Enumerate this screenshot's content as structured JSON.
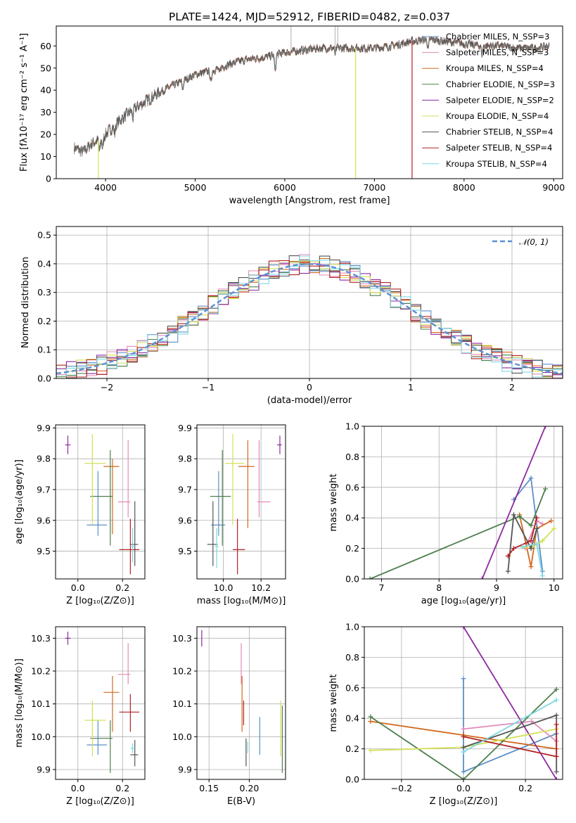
{
  "figure": {
    "title": "PLATE=1424, MJD=52912, FIBERID=0482, z=0.037"
  },
  "colors": {
    "Chabrier MILES": "#5c8fc9",
    "Salpeter MILES": "#e28ab9",
    "Kroupa MILES": "#d2691e",
    "Chabrier ELODIE": "#4e7f4e",
    "Salpeter ELODIE": "#8e2aa0",
    "Kroupa ELODIE": "#d4e157",
    "Chabrier STELIB": "#555555",
    "Salpeter STELIB": "#b22222",
    "Kroupa STELIB": "#7ed8e0",
    "normal_curve": "#5b8fd6"
  },
  "chart_data": [
    {
      "id": "spectrum",
      "type": "line",
      "title": "PLATE=1424, MJD=52912, FIBERID=0482, z=0.037",
      "xlabel": "wavelength [Angstrom, rest frame]",
      "ylabel": "Flux [fλ10⁻¹⁷ erg cm⁻² s⁻¹ A⁻¹]",
      "xlim": [
        3450,
        9100
      ],
      "ylim": [
        0,
        69
      ],
      "xticks": [
        4000,
        5000,
        6000,
        7000,
        8000,
        9000
      ],
      "yticks": [
        0,
        10,
        20,
        30,
        40,
        50,
        60
      ],
      "legend_position": "right",
      "legend": [
        "Chabrier MILES, N_SSP=3",
        "Salpeter MILES, N_SSP=3",
        "Kroupa MILES, N_SSP=4",
        "Chabrier ELODIE, N_SSP=3",
        "Salpeter ELODIE, N_SSP=2",
        "Kroupa ELODIE, N_SSP=4",
        "Chabrier STELIB, N_SSP=4",
        "Salpeter STELIB, N_SSP=4",
        "Kroupa STELIB, N_SSP=4"
      ],
      "continuum": {
        "x": [
          3650,
          3750,
          3850,
          3950,
          4050,
          4150,
          4300,
          4450,
          4600,
          4800,
          5000,
          5200,
          5400,
          5600,
          5800,
          6000,
          6200,
          6400,
          6600,
          6800,
          7000,
          7200,
          7400,
          7600,
          7800,
          8000,
          8200,
          8400,
          8600,
          8800,
          8950
        ],
        "y": [
          14,
          12,
          16,
          18,
          22,
          26,
          31,
          35,
          39,
          43,
          47,
          49,
          52,
          54,
          55,
          57,
          58,
          59,
          59,
          59,
          59,
          60,
          62,
          63,
          62,
          61,
          60,
          60,
          59,
          59,
          60
        ]
      },
      "dropouts": [
        {
          "series": "Kroupa ELODIE",
          "x": 6790
        },
        {
          "series": "Salpeter STELIB",
          "x": 7420
        },
        {
          "series": "Kroupa ELODIE",
          "x": 3920
        }
      ],
      "spikes": [
        6070,
        6560,
        6590
      ]
    },
    {
      "id": "residuals",
      "type": "line",
      "xlabel": "(data-model)/error",
      "ylabel": "Normed distribution",
      "xlim": [
        -2.5,
        2.5
      ],
      "ylim": [
        0,
        0.53
      ],
      "xticks": [
        -2,
        -1,
        0,
        1,
        2
      ],
      "yticks": [
        0.0,
        0.1,
        0.2,
        0.3,
        0.4,
        0.5
      ],
      "legend_position": "upper right",
      "legend": [
        "𝒩(0, 1)"
      ],
      "normal": {
        "mu": 0,
        "sigma": 1
      },
      "hist_bin_width": 0.1,
      "hist_series": [
        "Chabrier MILES",
        "Salpeter MILES",
        "Kroupa MILES",
        "Chabrier ELODIE",
        "Salpeter ELODIE",
        "Kroupa ELODIE",
        "Chabrier STELIB",
        "Salpeter STELIB",
        "Kroupa STELIB"
      ]
    },
    {
      "id": "age_vs_Z",
      "type": "scatter",
      "xlabel": "Z [log₁₀(Z/Z⊙)]",
      "ylabel": "age  [log₁₀(age/yr)]",
      "xlim": [
        -0.1,
        0.3
      ],
      "ylim": [
        9.41,
        9.91
      ],
      "xticks": [
        0.0,
        0.2
      ],
      "yticks": [
        9.5,
        9.6,
        9.7,
        9.8,
        9.9
      ],
      "points": [
        {
          "series": "Chabrier MILES",
          "x": 0.09,
          "y": 9.585,
          "xerr": [
            0.05,
            0.04
          ],
          "yerr": [
            0.035,
            0.175
          ]
        },
        {
          "series": "Salpeter MILES",
          "x": 0.225,
          "y": 9.66,
          "xerr": [
            0.045,
            0.01
          ],
          "yerr": [
            0.05,
            0.2
          ]
        },
        {
          "series": "Kroupa MILES",
          "x": 0.155,
          "y": 9.775,
          "xerr": [
            0.04,
            0.03
          ],
          "yerr": [
            0.22,
            0.025
          ]
        },
        {
          "series": "Chabrier ELODIE",
          "x": 0.145,
          "y": 9.678,
          "xerr": [
            0.09,
            0.01
          ],
          "yerr": [
            0.16,
            0.15
          ]
        },
        {
          "series": "Salpeter ELODIE",
          "x": -0.045,
          "y": 9.845,
          "xerr": [
            0.012,
            0.012
          ],
          "yerr": [
            0.03,
            0.03
          ]
        },
        {
          "series": "Kroupa ELODIE",
          "x": 0.065,
          "y": 9.785,
          "xerr": [
            0.035,
            0.06
          ],
          "yerr": [
            0.2,
            0.095
          ]
        },
        {
          "series": "Chabrier STELIB",
          "x": 0.255,
          "y": 9.522,
          "xerr": [
            0.02,
            0.015
          ],
          "yerr": [
            0.07,
            0.14
          ]
        },
        {
          "series": "Salpeter STELIB",
          "x": 0.235,
          "y": 9.505,
          "xerr": [
            0.05,
            0.04
          ],
          "yerr": [
            0.08,
            0.1
          ]
        },
        {
          "series": "Kroupa STELIB",
          "x": 0.245,
          "y": 9.515,
          "xerr": [
            0.01,
            0.01
          ],
          "yerr": [
            0.05,
            0.06
          ]
        }
      ]
    },
    {
      "id": "age_vs_mass",
      "type": "scatter",
      "xlabel": "mass [log₁₀(M/M⊙)]",
      "ylabel": "",
      "xlim": [
        9.86,
        10.33
      ],
      "ylim": [
        9.41,
        9.91
      ],
      "xticks": [
        10.0,
        10.2
      ],
      "yticks": [
        9.5,
        9.6,
        9.7,
        9.8,
        9.9
      ],
      "points": [
        {
          "series": "Chabrier MILES",
          "x": 9.975,
          "y": 9.585,
          "xerr": [
            0.04,
            0.035
          ],
          "yerr": [
            0.035,
            0.175
          ]
        },
        {
          "series": "Salpeter MILES",
          "x": 10.19,
          "y": 9.66,
          "xerr": [
            0.01,
            0.06
          ],
          "yerr": [
            0.05,
            0.2
          ]
        },
        {
          "series": "Kroupa MILES",
          "x": 10.13,
          "y": 9.775,
          "xerr": [
            0.05,
            0.035
          ],
          "yerr": [
            0.2,
            0.085
          ]
        },
        {
          "series": "Chabrier ELODIE",
          "x": 9.995,
          "y": 9.678,
          "xerr": [
            0.065,
            0.045
          ],
          "yerr": [
            0.16,
            0.15
          ]
        },
        {
          "series": "Salpeter ELODIE",
          "x": 10.3,
          "y": 9.845,
          "xerr": [
            0.015,
            0.01
          ],
          "yerr": [
            0.03,
            0.03
          ]
        },
        {
          "series": "Kroupa ELODIE",
          "x": 10.05,
          "y": 9.785,
          "xerr": [
            0.04,
            0.06
          ],
          "yerr": [
            0.2,
            0.095
          ]
        },
        {
          "series": "Chabrier STELIB",
          "x": 9.945,
          "y": 9.522,
          "xerr": [
            0.03,
            0.025
          ],
          "yerr": [
            0.07,
            0.14
          ]
        },
        {
          "series": "Salpeter STELIB",
          "x": 10.075,
          "y": 9.505,
          "xerr": [
            0.025,
            0.04
          ],
          "yerr": [
            0.08,
            0.1
          ]
        },
        {
          "series": "Kroupa STELIB",
          "x": 9.965,
          "y": 9.515,
          "xerr": [
            0.01,
            0.01
          ],
          "yerr": [
            0.07,
            0.06
          ]
        }
      ]
    },
    {
      "id": "weight_vs_age",
      "type": "line",
      "xlabel": "age  [log₁₀(age/yr)]",
      "ylabel": "mass weight",
      "xlim": [
        6.7,
        10.15
      ],
      "ylim": [
        0,
        1
      ],
      "xticks": [
        7,
        8,
        9,
        10
      ],
      "yticks": [
        0.0,
        0.2,
        0.4,
        0.6,
        0.8,
        1.0
      ],
      "series": [
        {
          "name": "Chabrier MILES",
          "x": [
            9.3,
            9.6,
            9.8
          ],
          "y": [
            0.52,
            0.66,
            0.05
          ]
        },
        {
          "name": "Salpeter MILES",
          "x": [
            9.5,
            9.7,
            9.8
          ],
          "y": [
            0.2,
            0.38,
            0.36
          ]
        },
        {
          "name": "Kroupa MILES",
          "x": [
            9.4,
            9.6,
            9.7,
            9.95
          ],
          "y": [
            0.42,
            0.08,
            0.33,
            0.38
          ]
        },
        {
          "name": "Chabrier ELODIE",
          "x": [
            6.8,
            9.4,
            9.6,
            9.85
          ],
          "y": [
            0.0,
            0.41,
            0.35,
            0.59
          ]
        },
        {
          "name": "Salpeter ELODIE",
          "x": [
            8.75,
            9.85
          ],
          "y": [
            0.0,
            1.0
          ]
        },
        {
          "name": "Kroupa ELODIE",
          "x": [
            9.45,
            9.6,
            9.8,
            10.0
          ],
          "y": [
            0.21,
            0.2,
            0.25,
            0.33
          ]
        },
        {
          "name": "Chabrier STELIB",
          "x": [
            9.2,
            9.3,
            9.6,
            9.7
          ],
          "y": [
            0.05,
            0.42,
            0.2,
            0.33
          ]
        },
        {
          "name": "Salpeter STELIB",
          "x": [
            9.2,
            9.3,
            9.6,
            9.7
          ],
          "y": [
            0.15,
            0.2,
            0.25,
            0.4
          ]
        },
        {
          "name": "Kroupa STELIB",
          "x": [
            9.45,
            9.7,
            9.8
          ],
          "y": [
            0.21,
            0.23,
            0.02
          ]
        }
      ]
    },
    {
      "id": "mass_vs_Z",
      "type": "scatter",
      "xlabel": "Z [log₁₀(Z/Z⊙)]",
      "ylabel": "mass [log₁₀(M/M⊙)]",
      "xlim": [
        -0.1,
        0.3
      ],
      "ylim": [
        9.87,
        10.335
      ],
      "xticks": [
        0.0,
        0.2
      ],
      "yticks": [
        9.9,
        10.0,
        10.1,
        10.2,
        10.3
      ],
      "points": [
        {
          "series": "Chabrier MILES",
          "x": 0.09,
          "y": 9.975,
          "xerr": [
            0.05,
            0.04
          ],
          "yerr": [
            0.03,
            0.075
          ]
        },
        {
          "series": "Salpeter MILES",
          "x": 0.225,
          "y": 10.19,
          "xerr": [
            0.045,
            0.01
          ],
          "yerr": [
            0.03,
            0.095
          ]
        },
        {
          "series": "Kroupa MILES",
          "x": 0.155,
          "y": 10.135,
          "xerr": [
            0.04,
            0.03
          ],
          "yerr": [
            0.12,
            0.05
          ]
        },
        {
          "series": "Chabrier ELODIE",
          "x": 0.145,
          "y": 9.995,
          "xerr": [
            0.09,
            0.01
          ],
          "yerr": [
            0.105,
            0.055
          ]
        },
        {
          "series": "Salpeter ELODIE",
          "x": -0.045,
          "y": 10.3,
          "xerr": [
            0.012,
            0.012
          ],
          "yerr": [
            0.02,
            0.02
          ]
        },
        {
          "series": "Kroupa ELODIE",
          "x": 0.065,
          "y": 10.05,
          "xerr": [
            0.035,
            0.06
          ],
          "yerr": [
            0.11,
            0.06
          ]
        },
        {
          "series": "Chabrier STELIB",
          "x": 0.255,
          "y": 9.945,
          "xerr": [
            0.02,
            0.015
          ],
          "yerr": [
            0.035,
            0.045
          ]
        },
        {
          "series": "Salpeter STELIB",
          "x": 0.235,
          "y": 10.075,
          "xerr": [
            0.05,
            0.04
          ],
          "yerr": [
            0.06,
            0.055
          ]
        },
        {
          "series": "Kroupa STELIB",
          "x": 0.245,
          "y": 9.965,
          "xerr": [
            0.01,
            0.01
          ],
          "yerr": [
            0.015,
            0.015
          ]
        }
      ]
    },
    {
      "id": "mass_vs_ebv",
      "type": "scatter",
      "xlabel": "E(B-V)",
      "ylabel": "",
      "xlim": [
        0.135,
        0.245
      ],
      "ylim": [
        9.87,
        10.335
      ],
      "xticks": [
        0.15,
        0.2
      ],
      "yticks": [
        9.9,
        10.0,
        10.1,
        10.2,
        10.3
      ],
      "points": [
        {
          "series": "Salpeter ELODIE",
          "x": 0.141,
          "y": 10.3,
          "xerr": [
            0,
            0
          ],
          "yerr": [
            0.025,
            0.025
          ]
        },
        {
          "series": "Salpeter MILES",
          "x": 0.19,
          "y": 10.19,
          "xerr": [
            0,
            0
          ],
          "yerr": [
            0.03,
            0.095
          ]
        },
        {
          "series": "Kroupa MILES",
          "x": 0.191,
          "y": 10.135,
          "xerr": [
            0,
            0
          ],
          "yerr": [
            0.12,
            0.05
          ]
        },
        {
          "series": "Salpeter STELIB",
          "x": 0.193,
          "y": 10.075,
          "xerr": [
            0,
            0
          ],
          "yerr": [
            0.04,
            0.035
          ]
        },
        {
          "series": "Chabrier STELIB",
          "x": 0.196,
          "y": 9.945,
          "xerr": [
            0,
            0
          ],
          "yerr": [
            0.035,
            0.05
          ]
        },
        {
          "series": "Kroupa STELIB",
          "x": 0.198,
          "y": 9.965,
          "xerr": [
            0,
            0
          ],
          "yerr": [
            0.015,
            0.02
          ]
        },
        {
          "series": "Chabrier MILES",
          "x": 0.213,
          "y": 9.975,
          "xerr": [
            0,
            0
          ],
          "yerr": [
            0.03,
            0.085
          ]
        },
        {
          "series": "Kroupa ELODIE",
          "x": 0.239,
          "y": 10.05,
          "xerr": [
            0,
            0
          ],
          "yerr": [
            0.11,
            0.06
          ]
        },
        {
          "series": "Chabrier ELODIE",
          "x": 0.241,
          "y": 9.995,
          "xerr": [
            0,
            0
          ],
          "yerr": [
            0.105,
            0.1
          ]
        }
      ]
    },
    {
      "id": "weight_vs_Z",
      "type": "line",
      "xlabel": "Z [log₁₀(Z/Z⊙)]",
      "ylabel": "mass weight",
      "xlim": [
        -0.32,
        0.32
      ],
      "ylim": [
        0,
        1
      ],
      "xticks": [
        -0.2,
        0.0,
        0.2
      ],
      "yticks": [
        0.0,
        0.2,
        0.4,
        0.6,
        0.8,
        1.0
      ],
      "series": [
        {
          "name": "Chabrier MILES",
          "x": [
            0.0,
            0.0,
            0.3
          ],
          "y": [
            0.66,
            0.05,
            0.3
          ]
        },
        {
          "name": "Salpeter MILES",
          "x": [
            0.0,
            0.22,
            0.3
          ],
          "y": [
            0.33,
            0.38,
            0.25
          ]
        },
        {
          "name": "Kroupa MILES",
          "x": [
            -0.3,
            0.0,
            0.3
          ],
          "y": [
            0.38,
            0.29,
            0.2
          ]
        },
        {
          "name": "Chabrier ELODIE",
          "x": [
            -0.3,
            0.0,
            0.3
          ],
          "y": [
            0.41,
            0.0,
            0.59
          ]
        },
        {
          "name": "Salpeter ELODIE",
          "x": [
            0.0,
            0.3
          ],
          "y": [
            1.0,
            0.0
          ]
        },
        {
          "name": "Kroupa ELODIE",
          "x": [
            -0.3,
            0.0,
            0.3
          ],
          "y": [
            0.19,
            0.21,
            0.33
          ]
        },
        {
          "name": "Chabrier STELIB",
          "x": [
            0.0,
            0.3,
            0.3
          ],
          "y": [
            0.21,
            0.42,
            0.05
          ]
        },
        {
          "name": "Salpeter STELIB",
          "x": [
            0.0,
            0.3,
            0.3
          ],
          "y": [
            0.28,
            0.15,
            0.36
          ]
        },
        {
          "name": "Kroupa STELIB",
          "x": [
            0.0,
            0.3
          ],
          "y": [
            0.18,
            0.52
          ]
        }
      ]
    }
  ]
}
